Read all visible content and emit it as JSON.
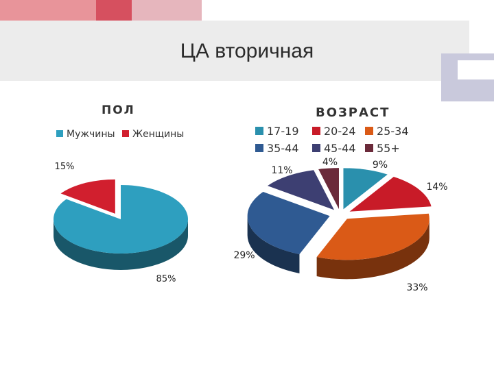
{
  "slide": {
    "title": "ЦА вторичная"
  },
  "decor_colors": {
    "red": "#d6505f",
    "pink": "#e8949a",
    "light_pink": "#e6b6bd",
    "lavender": "#c9c9dc",
    "band": "#ececec"
  },
  "chart_data": [
    {
      "type": "pie",
      "title": "ПОЛ",
      "legend_position": "top",
      "categories": [
        "Мужчины",
        "Женщины"
      ],
      "values": [
        85,
        15
      ],
      "labels": [
        "85%",
        "15%"
      ],
      "colors": [
        "#2e9fbf",
        "#d11f2e"
      ],
      "exploded": [
        "Женщины"
      ]
    },
    {
      "type": "pie",
      "title": "ВОЗРАСТ",
      "legend_position": "top",
      "categories": [
        "17-19",
        "20-24",
        "25-34",
        "35-44",
        "45-44",
        "55+"
      ],
      "values": [
        9,
        14,
        33,
        29,
        11,
        4
      ],
      "labels": [
        "9%",
        "14%",
        "33%",
        "29%",
        "11%",
        "4%"
      ],
      "colors": [
        "#2a90ad",
        "#c81b28",
        "#da5a17",
        "#2f5a92",
        "#3d3f72",
        "#6b2a3a"
      ],
      "exploded": [
        "17-19",
        "20-24",
        "25-34",
        "35-44",
        "45-44",
        "55+"
      ]
    }
  ]
}
